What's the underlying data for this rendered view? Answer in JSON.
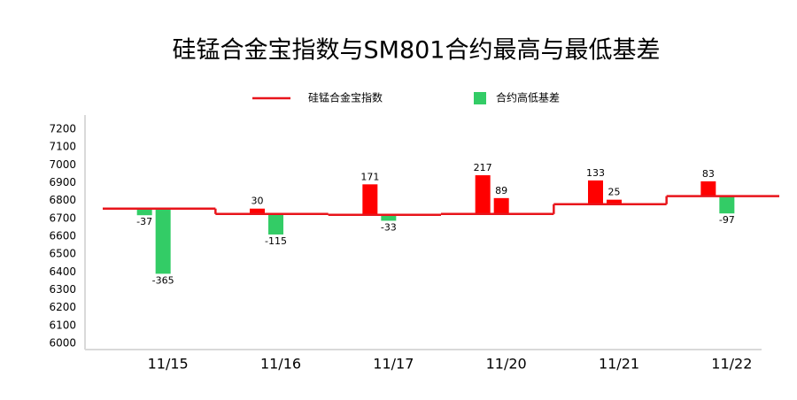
{
  "chart_data": {
    "type": "step-floating-bar",
    "title": "硅锰合金宝指数与SM801合约最高与最低基差",
    "categories": [
      "11/15",
      "11/16",
      "11/17",
      "11/20",
      "11/21",
      "11/22"
    ],
    "series": [
      {
        "name": "硅锰合金宝指数",
        "color": "#e8141b",
        "values": [
          6755,
          6725,
          6720,
          6725,
          6780,
          6825
        ]
      },
      {
        "name": "合约高低基差",
        "color": "#33cc66",
        "positive_color": "#ff0000",
        "values": [
          [
            -37,
            -365
          ],
          [
            30,
            -115
          ],
          [
            171,
            -33
          ],
          [
            217,
            89
          ],
          [
            133,
            25
          ],
          [
            83,
            -97
          ]
        ]
      }
    ],
    "ylim": [
      6000,
      7200
    ],
    "yticks": [
      6000,
      6100,
      6200,
      6300,
      6400,
      6500,
      6600,
      6700,
      6800,
      6900,
      7000,
      7100,
      7200
    ]
  }
}
